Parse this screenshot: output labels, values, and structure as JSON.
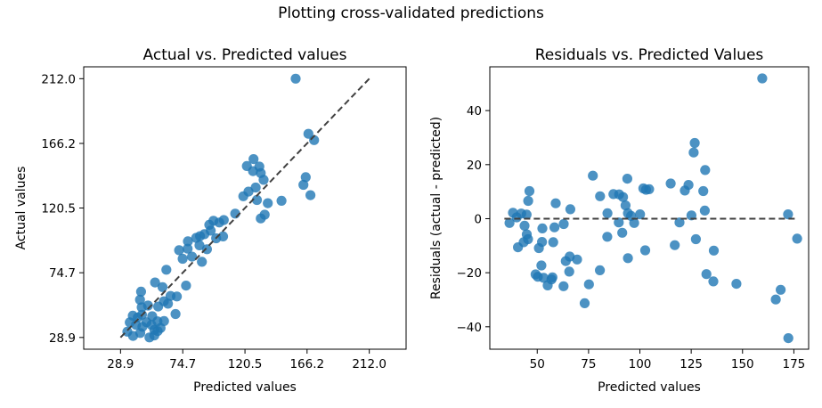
{
  "figure_title": "Plotting cross-validated predictions",
  "chart_data": [
    {
      "type": "scatter",
      "title": "Actual vs. Predicted values",
      "xlabel": "Predicted values",
      "ylabel": "Actual values",
      "xlim": [
        1.8,
        239.1
      ],
      "ylim": [
        20.6,
        220.4
      ],
      "xticks": [
        28.9,
        74.7,
        120.5,
        166.2,
        212.0
      ],
      "xtick_labels": [
        "28.9",
        "74.7",
        "120.5",
        "166.2",
        "212.0"
      ],
      "yticks": [
        28.9,
        74.7,
        120.5,
        166.2,
        212.0
      ],
      "ytick_labels": [
        "28.9",
        "74.7",
        "120.5",
        "166.2",
        "212.0"
      ],
      "reference_line": {
        "from": [
          28.9,
          28.9
        ],
        "to": [
          212.0,
          212.0
        ],
        "style": "dashed"
      },
      "color": "#1f77b4",
      "points": [
        [
          157.8,
          212.0
        ],
        [
          167.2,
          173.0
        ],
        [
          171.4,
          168.5
        ],
        [
          126.8,
          155.1
        ],
        [
          131.1,
          149.8
        ],
        [
          121.9,
          150.2
        ],
        [
          126.4,
          146.6
        ],
        [
          132.1,
          145.2
        ],
        [
          134.2,
          140.4
        ],
        [
          128.4,
          135.0
        ],
        [
          119.3,
          128.8
        ],
        [
          123.1,
          132.1
        ],
        [
          147.4,
          125.6
        ],
        [
          165.2,
          142.3
        ],
        [
          163.5,
          136.9
        ],
        [
          168.7,
          129.6
        ],
        [
          129.3,
          126.2
        ],
        [
          137.3,
          123.9
        ],
        [
          135.0,
          115.8
        ],
        [
          132.1,
          113.1
        ],
        [
          113.3,
          116.5
        ],
        [
          104.9,
          112.0
        ],
        [
          101.6,
          110.2
        ],
        [
          97.3,
          111.5
        ],
        [
          94.2,
          108.6
        ],
        [
          104.4,
          100.4
        ],
        [
          95.3,
          104.5
        ],
        [
          99.3,
          99.1
        ],
        [
          90.6,
          102.0
        ],
        [
          87.4,
          100.6
        ],
        [
          84.6,
          99.4
        ],
        [
          78.5,
          96.9
        ],
        [
          87.0,
          94.1
        ],
        [
          92.5,
          91.3
        ],
        [
          88.8,
          82.4
        ],
        [
          78.3,
          91.7
        ],
        [
          72.0,
          90.6
        ],
        [
          81.5,
          86.1
        ],
        [
          74.6,
          84.6
        ],
        [
          62.6,
          76.8
        ],
        [
          54.3,
          67.8
        ],
        [
          59.8,
          64.5
        ],
        [
          77.1,
          65.6
        ],
        [
          70.4,
          57.9
        ],
        [
          65.7,
          58.3
        ],
        [
          60.8,
          54.5
        ],
        [
          63.8,
          52.8
        ],
        [
          69.4,
          45.5
        ],
        [
          56.6,
          50.8
        ],
        [
          44.0,
          61.3
        ],
        [
          43.2,
          55.6
        ],
        [
          44.5,
          50.2
        ],
        [
          49.1,
          51.5
        ],
        [
          52.2,
          43.9
        ],
        [
          48.0,
          39.7
        ],
        [
          44.7,
          45.0
        ],
        [
          41.6,
          43.1
        ],
        [
          37.9,
          44.3
        ],
        [
          35.7,
          39.6
        ],
        [
          45.0,
          36.5
        ],
        [
          40.3,
          37.8
        ],
        [
          43.4,
          32.1
        ],
        [
          53.8,
          34.3
        ],
        [
          56.1,
          40.3
        ],
        [
          60.9,
          40.5
        ],
        [
          51.7,
          37.8
        ],
        [
          58.4,
          35.6
        ],
        [
          56.2,
          33.4
        ],
        [
          53.8,
          30.4
        ],
        [
          50.2,
          28.9
        ],
        [
          33.9,
          33.0
        ],
        [
          38.1,
          30.0
        ]
      ]
    },
    {
      "type": "scatter",
      "title": "Residuals vs. Predicted Values",
      "xlabel": "Predicted values",
      "ylabel": "Residuals (actual - predicted)",
      "xlim": [
        26.9,
        182.2
      ],
      "ylim": [
        -48.3,
        56.2
      ],
      "xticks": [
        50,
        75,
        100,
        125,
        150,
        175
      ],
      "xtick_labels": [
        "50",
        "75",
        "100",
        "125",
        "150",
        "175"
      ],
      "yticks": [
        -40,
        -20,
        0,
        20,
        40
      ],
      "ytick_labels": [
        "−40",
        "−20",
        "0",
        "20",
        "40"
      ],
      "reference_line": {
        "from": [
          34.0,
          0
        ],
        "to": [
          177.0,
          0
        ],
        "style": "dashed"
      },
      "color": "#1f77b4",
      "points": [
        [
          159.6,
          51.9
        ],
        [
          126.7,
          28.0
        ],
        [
          126.2,
          24.5
        ],
        [
          131.8,
          18.0
        ],
        [
          130.9,
          10.2
        ],
        [
          131.6,
          3.0
        ],
        [
          121.9,
          10.4
        ],
        [
          123.7,
          12.5
        ],
        [
          115.0,
          13.0
        ],
        [
          93.9,
          14.8
        ],
        [
          77.1,
          15.9
        ],
        [
          46.2,
          10.2
        ],
        [
          45.6,
          6.6
        ],
        [
          59.0,
          5.7
        ],
        [
          66.1,
          3.5
        ],
        [
          80.6,
          8.3
        ],
        [
          87.1,
          9.1
        ],
        [
          89.9,
          9.0
        ],
        [
          91.8,
          8.0
        ],
        [
          93.0,
          4.9
        ],
        [
          94.2,
          2.0
        ],
        [
          95.7,
          1.0
        ],
        [
          100.1,
          1.6
        ],
        [
          97.2,
          -1.6
        ],
        [
          101.7,
          11.2
        ],
        [
          103.0,
          10.7
        ],
        [
          104.5,
          10.9
        ],
        [
          84.2,
          2.0
        ],
        [
          38.2,
          2.2
        ],
        [
          42.2,
          1.9
        ],
        [
          44.8,
          1.5
        ],
        [
          40.0,
          0.5
        ],
        [
          36.5,
          -1.6
        ],
        [
          43.8,
          -2.6
        ],
        [
          44.9,
          -5.8
        ],
        [
          45.5,
          -7.6
        ],
        [
          43.4,
          -8.7
        ],
        [
          40.6,
          -10.6
        ],
        [
          52.5,
          -3.6
        ],
        [
          58.4,
          -3.2
        ],
        [
          62.9,
          -2.0
        ],
        [
          52.3,
          -8.6
        ],
        [
          57.8,
          -8.7
        ],
        [
          50.8,
          -10.9
        ],
        [
          89.7,
          -1.4
        ],
        [
          91.4,
          -5.2
        ],
        [
          84.1,
          -6.7
        ],
        [
          119.3,
          -1.4
        ],
        [
          125.1,
          1.2
        ],
        [
          127.3,
          -7.6
        ],
        [
          117.0,
          -9.8
        ],
        [
          102.6,
          -11.7
        ],
        [
          136.0,
          -11.8
        ],
        [
          94.2,
          -14.6
        ],
        [
          65.8,
          -14.0
        ],
        [
          63.9,
          -15.7
        ],
        [
          69.4,
          -15.1
        ],
        [
          52.0,
          -17.3
        ],
        [
          49.2,
          -20.6
        ],
        [
          50.3,
          -21.5
        ],
        [
          53.1,
          -21.9
        ],
        [
          57.4,
          -21.7
        ],
        [
          56.9,
          -22.5
        ],
        [
          65.6,
          -19.6
        ],
        [
          80.5,
          -19.1
        ],
        [
          55.1,
          -24.7
        ],
        [
          62.8,
          -25.0
        ],
        [
          75.2,
          -24.3
        ],
        [
          73.1,
          -31.3
        ],
        [
          132.4,
          -20.5
        ],
        [
          135.8,
          -23.2
        ],
        [
          147.0,
          -24.1
        ],
        [
          168.6,
          -26.3
        ],
        [
          166.2,
          -29.9
        ],
        [
          172.2,
          1.6
        ],
        [
          176.6,
          -7.4
        ],
        [
          172.3,
          -44.2
        ]
      ]
    }
  ]
}
